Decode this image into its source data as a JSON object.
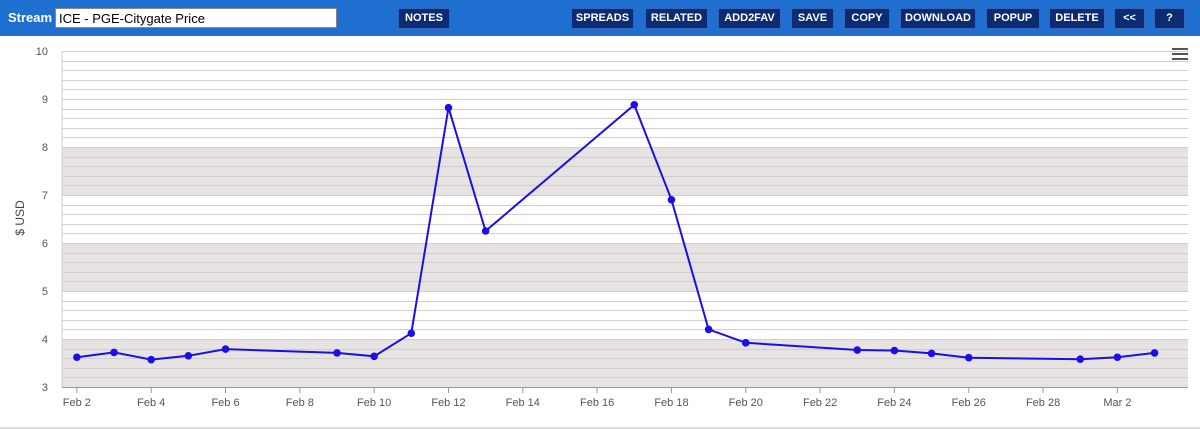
{
  "toolbar": {
    "stream_label": "Stream",
    "stream_value": "ICE - PGE-Citygate Price",
    "buttons": {
      "notes": "NOTES",
      "spreads": "SPREADS",
      "related": "RELATED",
      "add2fav": "ADD2FAV",
      "save": "SAVE",
      "copy": "COPY",
      "download": "DOWNLOAD",
      "popup": "POPUP",
      "delete": "DELETE",
      "collapse": "<<",
      "help": "?"
    }
  },
  "colors": {
    "toolbar_bg": "#1f6fd1",
    "button_bg": "#0b2c73",
    "series_line": "#1a0fe6",
    "band_fill": "#e8e3e3",
    "grid_line": "#cfcfcf"
  },
  "menu_icon": "hamburger-icon",
  "chart_data": {
    "type": "line",
    "ylabel": "$ USD",
    "ylim": [
      3,
      10
    ],
    "yticks": [
      "3",
      "4",
      "5",
      "6",
      "7",
      "8",
      "9",
      "10"
    ],
    "xlim": [
      1.6,
      31.9
    ],
    "xticks": [
      {
        "label": "Feb 2",
        "day": 2
      },
      {
        "label": "Feb 4",
        "day": 4
      },
      {
        "label": "Feb 6",
        "day": 6
      },
      {
        "label": "Feb 8",
        "day": 8
      },
      {
        "label": "Feb 10",
        "day": 10
      },
      {
        "label": "Feb 12",
        "day": 12
      },
      {
        "label": "Feb 14",
        "day": 14
      },
      {
        "label": "Feb 16",
        "day": 16
      },
      {
        "label": "Feb 18",
        "day": 18
      },
      {
        "label": "Feb 20",
        "day": 20
      },
      {
        "label": "Feb 22",
        "day": 22
      },
      {
        "label": "Feb 24",
        "day": 24
      },
      {
        "label": "Feb 26",
        "day": 26
      },
      {
        "label": "Feb 28",
        "day": 28
      },
      {
        "label": "Mar 2",
        "day": 30
      }
    ],
    "shaded_bands": [
      [
        3,
        4
      ],
      [
        5,
        6
      ],
      [
        7,
        8
      ]
    ],
    "grid_step": 0.2,
    "series": [
      {
        "points": [
          {
            "x": 2,
            "y": 3.62
          },
          {
            "x": 3,
            "y": 3.72
          },
          {
            "x": 4,
            "y": 3.57
          },
          {
            "x": 5,
            "y": 3.65
          },
          {
            "x": 6,
            "y": 3.79
          },
          {
            "x": 9,
            "y": 3.71
          },
          {
            "x": 10,
            "y": 3.64
          },
          {
            "x": 11,
            "y": 4.12
          },
          {
            "x": 12,
            "y": 8.82
          },
          {
            "x": 13,
            "y": 6.25
          },
          {
            "x": 17,
            "y": 8.88
          },
          {
            "x": 18,
            "y": 6.9
          },
          {
            "x": 19,
            "y": 4.2
          },
          {
            "x": 20,
            "y": 3.92
          },
          {
            "x": 23,
            "y": 3.77
          },
          {
            "x": 24,
            "y": 3.76
          },
          {
            "x": 25,
            "y": 3.7
          },
          {
            "x": 26,
            "y": 3.61
          },
          {
            "x": 29,
            "y": 3.58
          },
          {
            "x": 30,
            "y": 3.62
          },
          {
            "x": 31,
            "y": 3.71
          }
        ]
      }
    ]
  }
}
